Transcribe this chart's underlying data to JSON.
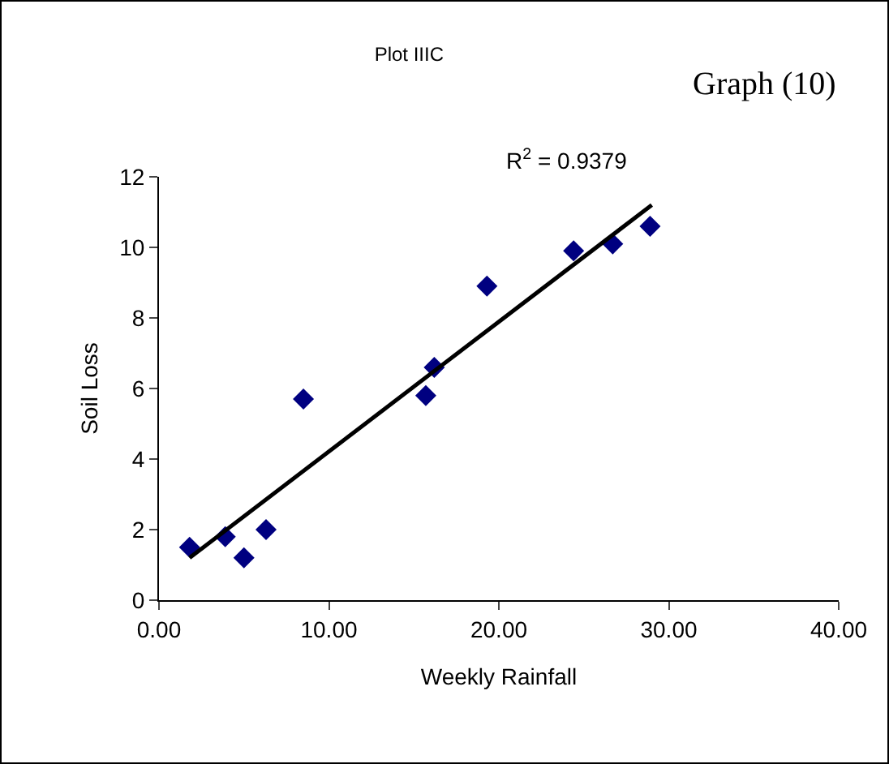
{
  "chart_data": {
    "type": "scatter",
    "title": "Plot IIIC",
    "xlabel": "Weekly Rainfall",
    "ylabel": "Soil Loss",
    "annotations": [
      "Graph (10)",
      "R$^{2}$ = 0.9379"
    ],
    "series": [
      {
        "color": "#000080",
        "marker": "diamond",
        "x": [
          1.8,
          3.9,
          5.0,
          6.3,
          8.5,
          15.7,
          16.2,
          19.3,
          24.4,
          26.7,
          28.9
        ],
        "values": [
          1.5,
          1.8,
          1.2,
          2.0,
          5.7,
          5.8,
          6.6,
          8.9,
          9.9,
          10.1,
          10.6
        ]
      },
      {
        "type": "line",
        "color": "#000000",
        "marker": "none",
        "x": [
          1.8,
          29
        ],
        "values": [
          1.2,
          11.2
        ]
      }
    ],
    "xlim": [
      0,
      40
    ],
    "xticks": [
      {
        "value": 0,
        "label": "0.00"
      },
      {
        "value": 10,
        "label": "10.00"
      },
      {
        "value": 20,
        "label": "20.00"
      },
      {
        "value": 30,
        "label": "30.00"
      },
      {
        "value": 40,
        "label": "40.00"
      }
    ],
    "ylim": [
      0,
      12
    ],
    "yticks": [
      0,
      2,
      4,
      6,
      8,
      10,
      12
    ],
    "grid": false
  }
}
